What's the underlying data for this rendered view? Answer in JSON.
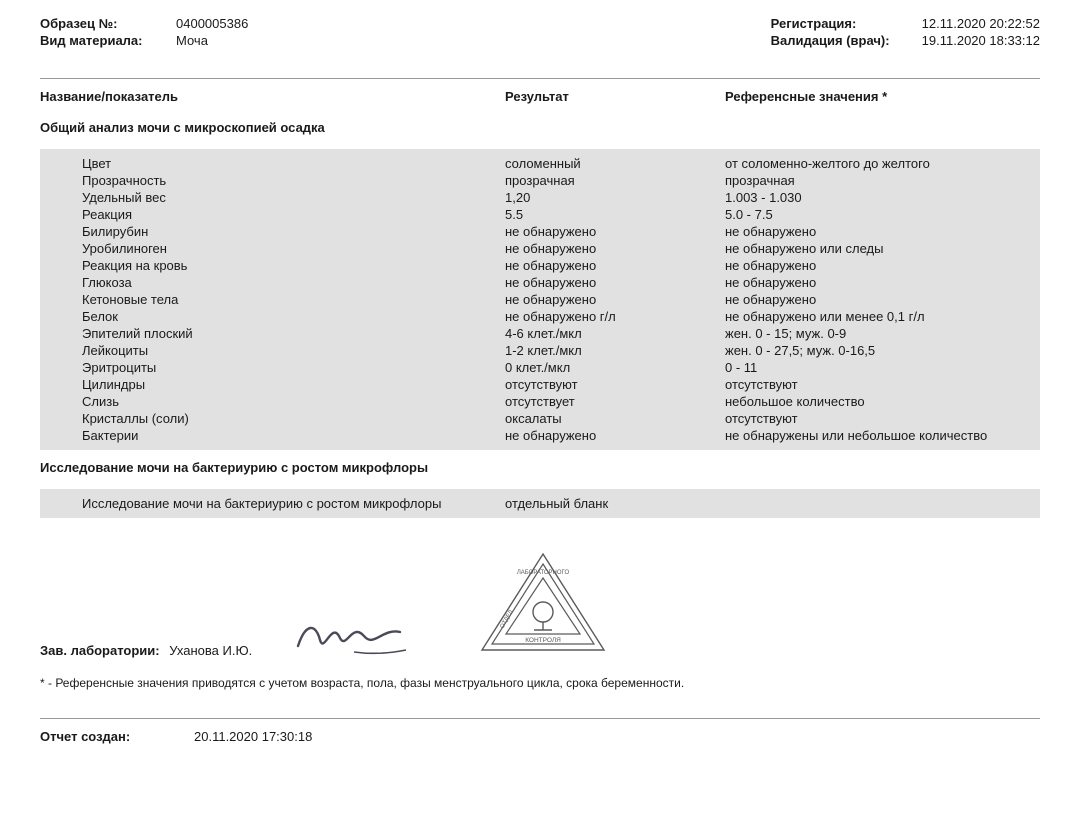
{
  "header": {
    "sample_no_label": "Образец №:",
    "sample_no": "0400005386",
    "material_label": "Вид материала:",
    "material": "Моча",
    "registration_label": "Регистрация:",
    "registration": "12.11.2020 20:22:52",
    "validation_label": "Валидация (врач):",
    "validation": "19.11.2020 18:33:12"
  },
  "columns": {
    "name": "Название/показатель",
    "result": "Результат",
    "reference": "Референсные значения *"
  },
  "sections": [
    {
      "title": "Общий анализ мочи с микроскопией осадка",
      "rows": [
        {
          "name": "Цвет",
          "result": "соломенный",
          "ref": "от соломенно-желтого до желтого"
        },
        {
          "name": "Прозрачность",
          "result": "прозрачная",
          "ref": "прозрачная"
        },
        {
          "name": "Удельный вес",
          "result": "1,20",
          "ref": "1.003 - 1.030"
        },
        {
          "name": "Реакция",
          "result": "5.5",
          "ref": "5.0 - 7.5"
        },
        {
          "name": "Билирубин",
          "result": "не обнаружено",
          "ref": "не обнаружено"
        },
        {
          "name": "Уробилиноген",
          "result": "не обнаружено",
          "ref": "не обнаружено или следы"
        },
        {
          "name": "Реакция на кровь",
          "result": "не обнаружено",
          "ref": "не обнаружено"
        },
        {
          "name": "Глюкоза",
          "result": "не обнаружено",
          "ref": "не обнаружено"
        },
        {
          "name": "Кетоновые тела",
          "result": "не обнаружено",
          "ref": "не обнаружено"
        },
        {
          "name": "Белок",
          "result": "не обнаружено г/л",
          "ref": "не обнаружено или менее 0,1 г/л"
        },
        {
          "name": "Эпителий плоский",
          "result": "4-6 клет./мкл",
          "ref": "жен. 0 - 15;  муж. 0-9"
        },
        {
          "name": "Лейкоциты",
          "result": "1-2 клет./мкл",
          "ref": "жен. 0 - 27,5; муж. 0-16,5"
        },
        {
          "name": "Эритроциты",
          "result": "0 клет./мкл",
          "ref": "0 - 11"
        },
        {
          "name": "Цилиндры",
          "result": "отсутствуют",
          "ref": "отсутствуют"
        },
        {
          "name": "Слизь",
          "result": "отсутствует",
          "ref": "небольшое количество"
        },
        {
          "name": "Кристаллы (соли)",
          "result": "оксалаты",
          "ref": "отсутствуют"
        },
        {
          "name": "Бактерии",
          "result": "не обнаружено",
          "ref": "не обнаружены или небольшое количество"
        }
      ]
    },
    {
      "title": "Исследование мочи на бактериурию с ростом микрофлоры",
      "rows": [
        {
          "name": "Исследование мочи на бактериурию с ростом микрофлоры",
          "result": "отдельный бланк",
          "ref": ""
        }
      ]
    }
  ],
  "signature": {
    "label": "Зав. лаборатории:",
    "name": "Уханова И.Ю."
  },
  "stamp": {
    "top": "ЛАБОРАТОРНОГО",
    "left": "ОТДЕЛ",
    "bottom": "КОНТРОЛЯ"
  },
  "footnote": "* - Референсные значения приводятся с учетом возраста, пола, фазы менструального цикла, срока беременности.",
  "report": {
    "label": "Отчет создан:",
    "value": "20.11.2020 17:30:18"
  },
  "style": {
    "row_bg": "#e1e1e1",
    "text_color": "#1a1a1a",
    "separator_color": "#9a9a9a",
    "font_size_base": 13,
    "font_size_footnote": 12,
    "signature_stroke": "#4a4a58",
    "stamp_stroke": "#5a5a5a"
  }
}
